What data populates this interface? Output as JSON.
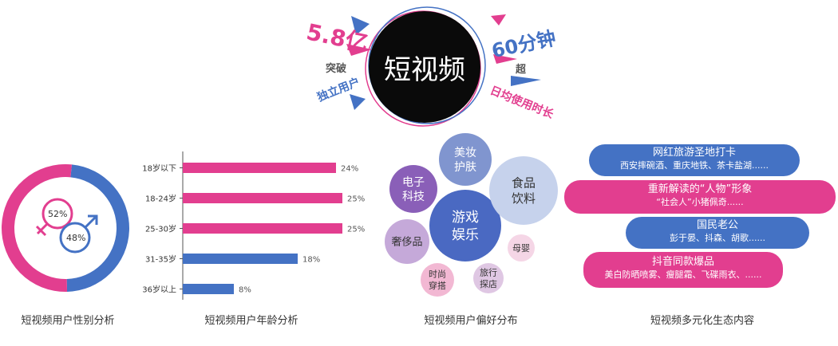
{
  "colors": {
    "pink": "#e23e8f",
    "blue": "#4472c4",
    "black": "#0a0a0a"
  },
  "header": {
    "center_title": "短视频",
    "left_big": "5.8亿",
    "left_mid": "突破",
    "left_small": "独立用户",
    "right_big": "60分钟",
    "right_mid": "超",
    "right_small": "日均使用时长"
  },
  "gender_chart": {
    "caption": "短视频用户性别分析",
    "female_pct_label": "52%",
    "male_pct_label": "48%",
    "female_icon": "female-symbol-icon",
    "male_icon": "male-symbol-icon"
  },
  "chart_data": [
    {
      "type": "pie",
      "categories": [
        "女",
        "男"
      ],
      "values": [
        52,
        48
      ],
      "colors": [
        "#e23e8f",
        "#4472c4"
      ],
      "style": "donut"
    },
    {
      "type": "bar",
      "orientation": "horizontal",
      "categories": [
        "18岁以下",
        "18-24岁",
        "25-30岁",
        "31-35岁",
        "36岁以上"
      ],
      "values": [
        24,
        25,
        25,
        18,
        8
      ],
      "value_labels": [
        "24%",
        "25%",
        "25%",
        "18%",
        "8%"
      ],
      "bar_colors": [
        "#e23e8f",
        "#e23e8f",
        "#e23e8f",
        "#4472c4",
        "#4472c4"
      ],
      "xlim": [
        0,
        28
      ]
    }
  ],
  "age_chart": {
    "caption": "短视频用户年龄分析"
  },
  "preference": {
    "caption": "短视频用户偏好分布",
    "bubbles": [
      "美妆\n护肤",
      "电子\n科技",
      "游戏\n娱乐",
      "食品\n饮料",
      "奢侈品",
      "母婴",
      "时尚\n穿搭",
      "旅行\n探店"
    ]
  },
  "ecosystem": {
    "caption": "短视频多元化生态内容",
    "items": [
      {
        "title": "网红旅游圣地打卡",
        "sub": "西安摔碗酒、重庆地铁、茶卡盐湖......"
      },
      {
        "title": "重新解读的“人物”形象",
        "sub": "“社会人”小猪佩奇......"
      },
      {
        "title": "国民老公",
        "sub": "彭于晏、抖森、胡歌......"
      },
      {
        "title": "抖音同款爆品",
        "sub": "美白防晒喷雾、瘦腿霜、飞碟雨衣、......"
      }
    ]
  }
}
